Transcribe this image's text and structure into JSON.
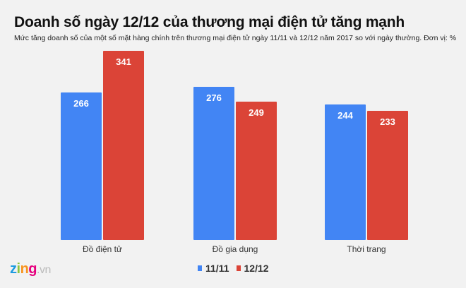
{
  "header": {
    "title": "Doanh số ngày 12/12 của thương mại điện tử tăng mạnh",
    "subtitle": "Mức tăng doanh số của một số mặt hàng chính trên thương mại điện tử ngày 11/11 và 12/12 năm 2017 so với ngày thường. Đơn vị: %"
  },
  "colors": {
    "series_1111": "#4285f4",
    "series_1212": "#db4437",
    "background": "#f2f2f2"
  },
  "legend": [
    {
      "label": "11/11",
      "color": "#4285f4"
    },
    {
      "label": "12/12",
      "color": "#db4437"
    }
  ],
  "logo": {
    "brand": "zing",
    "suffix": ".vn"
  },
  "chart_data": {
    "type": "bar",
    "title": "Doanh số ngày 12/12 của thương mại điện tử tăng mạnh",
    "subtitle": "Mức tăng doanh số của một số mặt hàng chính trên thương mại điện tử ngày 11/11 và 12/12 năm 2017 so với ngày thường. Đơn vị: %",
    "xlabel": "",
    "ylabel": "",
    "categories": [
      "Đồ điện tử",
      "Đồ gia dụng",
      "Thời trang"
    ],
    "series": [
      {
        "name": "11/11",
        "color": "#4285f4",
        "values": [
          266,
          276,
          244
        ]
      },
      {
        "name": "12/12",
        "color": "#db4437",
        "values": [
          341,
          249,
          233
        ]
      }
    ],
    "grid": false,
    "legend_position": "bottom",
    "data_labels": true
  }
}
